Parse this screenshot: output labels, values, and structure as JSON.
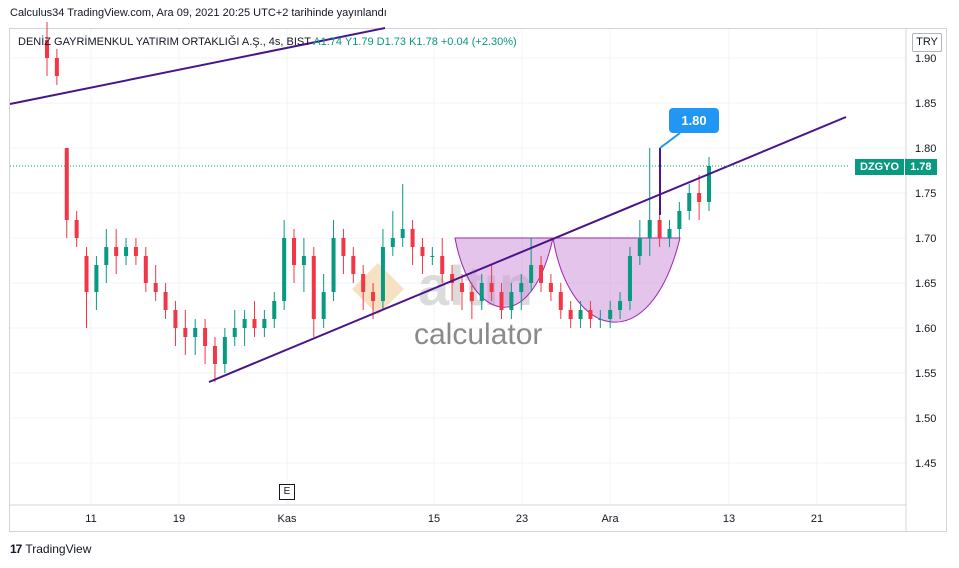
{
  "header": {
    "published_line": "Calculus34 TradingView.com, Ara 09, 2021 20:25 UTC+2 tarihinde yayınlandı"
  },
  "legend": {
    "instrument": "DENİZ GAYRİMENKUL YATIRIM ORTAKLIĞI A.Ş., 4s, BIST",
    "ohlc": "A1.74  Y1.79  D1.73  K1.78  +0.04 (+2.30%)"
  },
  "currency": "TRY",
  "ticker": {
    "symbol": "DZGYO",
    "last_price": "1.78"
  },
  "annotation_label": "1.80",
  "earnings_marker": "E",
  "watermark": {
    "brand": "altın",
    "subtitle": "calculator"
  },
  "footer": {
    "brand": "TradingView"
  },
  "colors": {
    "up": "#089981",
    "down": "#f23645",
    "trendline": "#4a148c",
    "pattern_fill": "#ce93d8",
    "annotation": "#2196f3"
  },
  "chart_data": {
    "type": "candlestick",
    "y_ticks": [
      "1.90",
      "1.85",
      "1.80",
      "1.75",
      "1.70",
      "1.65",
      "1.60",
      "1.55",
      "1.50",
      "1.45"
    ],
    "ylim": [
      1.405,
      1.935
    ],
    "x_ticks": [
      "11",
      "19",
      "Kas",
      "15",
      "23",
      "Ara",
      "13",
      "21"
    ],
    "grid": true,
    "last_price": 1.78,
    "ohlc_last": {
      "open": 1.74,
      "high": 1.79,
      "low": 1.73,
      "close": 1.78,
      "change": 0.04,
      "change_pct": 2.3
    },
    "candles": [
      [
        1.92,
        1.94,
        1.88,
        1.9
      ],
      [
        1.9,
        1.91,
        1.87,
        1.88
      ],
      [
        1.8,
        1.8,
        1.7,
        1.72
      ],
      [
        1.72,
        1.73,
        1.69,
        1.7
      ],
      [
        1.68,
        1.69,
        1.6,
        1.64
      ],
      [
        1.64,
        1.68,
        1.62,
        1.67
      ],
      [
        1.67,
        1.71,
        1.65,
        1.69
      ],
      [
        1.69,
        1.71,
        1.66,
        1.68
      ],
      [
        1.68,
        1.7,
        1.67,
        1.69
      ],
      [
        1.69,
        1.7,
        1.67,
        1.68
      ],
      [
        1.68,
        1.69,
        1.64,
        1.65
      ],
      [
        1.65,
        1.67,
        1.63,
        1.64
      ],
      [
        1.64,
        1.65,
        1.61,
        1.62
      ],
      [
        1.62,
        1.63,
        1.58,
        1.6
      ],
      [
        1.6,
        1.62,
        1.57,
        1.59
      ],
      [
        1.59,
        1.61,
        1.57,
        1.6
      ],
      [
        1.6,
        1.61,
        1.56,
        1.58
      ],
      [
        1.58,
        1.59,
        1.54,
        1.56
      ],
      [
        1.56,
        1.6,
        1.55,
        1.59
      ],
      [
        1.59,
        1.62,
        1.58,
        1.6
      ],
      [
        1.6,
        1.62,
        1.58,
        1.61
      ],
      [
        1.61,
        1.63,
        1.59,
        1.6
      ],
      [
        1.6,
        1.62,
        1.59,
        1.61
      ],
      [
        1.61,
        1.64,
        1.6,
        1.63
      ],
      [
        1.63,
        1.72,
        1.62,
        1.7
      ],
      [
        1.7,
        1.71,
        1.65,
        1.67
      ],
      [
        1.67,
        1.7,
        1.64,
        1.68
      ],
      [
        1.68,
        1.69,
        1.59,
        1.61
      ],
      [
        1.61,
        1.66,
        1.6,
        1.64
      ],
      [
        1.64,
        1.72,
        1.63,
        1.7
      ],
      [
        1.7,
        1.71,
        1.66,
        1.68
      ],
      [
        1.68,
        1.69,
        1.65,
        1.66
      ],
      [
        1.66,
        1.67,
        1.62,
        1.64
      ],
      [
        1.64,
        1.65,
        1.61,
        1.63
      ],
      [
        1.63,
        1.71,
        1.62,
        1.69
      ],
      [
        1.69,
        1.73,
        1.68,
        1.7
      ],
      [
        1.7,
        1.76,
        1.69,
        1.71
      ],
      [
        1.71,
        1.72,
        1.67,
        1.69
      ],
      [
        1.69,
        1.7,
        1.66,
        1.68
      ],
      [
        1.68,
        1.69,
        1.67,
        1.68
      ],
      [
        1.68,
        1.7,
        1.65,
        1.66
      ],
      [
        1.66,
        1.67,
        1.63,
        1.65
      ],
      [
        1.65,
        1.66,
        1.62,
        1.64
      ],
      [
        1.64,
        1.65,
        1.61,
        1.63
      ],
      [
        1.63,
        1.66,
        1.62,
        1.65
      ],
      [
        1.65,
        1.67,
        1.63,
        1.64
      ],
      [
        1.64,
        1.65,
        1.61,
        1.62
      ],
      [
        1.62,
        1.65,
        1.61,
        1.64
      ],
      [
        1.64,
        1.66,
        1.62,
        1.65
      ],
      [
        1.65,
        1.7,
        1.64,
        1.67
      ],
      [
        1.67,
        1.68,
        1.64,
        1.65
      ],
      [
        1.65,
        1.66,
        1.63,
        1.64
      ],
      [
        1.64,
        1.65,
        1.61,
        1.62
      ],
      [
        1.62,
        1.63,
        1.6,
        1.61
      ],
      [
        1.61,
        1.63,
        1.6,
        1.62
      ],
      [
        1.62,
        1.63,
        1.6,
        1.61
      ],
      [
        1.61,
        1.62,
        1.6,
        1.61
      ],
      [
        1.61,
        1.63,
        1.6,
        1.62
      ],
      [
        1.62,
        1.64,
        1.61,
        1.63
      ],
      [
        1.63,
        1.69,
        1.62,
        1.68
      ],
      [
        1.68,
        1.72,
        1.67,
        1.7
      ],
      [
        1.7,
        1.8,
        1.68,
        1.72
      ],
      [
        1.72,
        1.73,
        1.69,
        1.7
      ],
      [
        1.7,
        1.72,
        1.69,
        1.71
      ],
      [
        1.71,
        1.74,
        1.7,
        1.73
      ],
      [
        1.73,
        1.76,
        1.72,
        1.75
      ],
      [
        1.75,
        1.77,
        1.72,
        1.74
      ],
      [
        1.74,
        1.79,
        1.73,
        1.78
      ]
    ],
    "trendlines": [
      {
        "from": {
          "x": "19",
          "y": 1.54
        },
        "to": {
          "x": "Ara",
          "y": 1.71
        }
      },
      {
        "from": {
          "x": "Ara",
          "y": 1.71
        },
        "to": {
          "x": "13",
          "y": 1.79
        }
      }
    ],
    "pattern": "cup and handle",
    "annotation": {
      "label": "1.80",
      "price": 1.8
    }
  }
}
